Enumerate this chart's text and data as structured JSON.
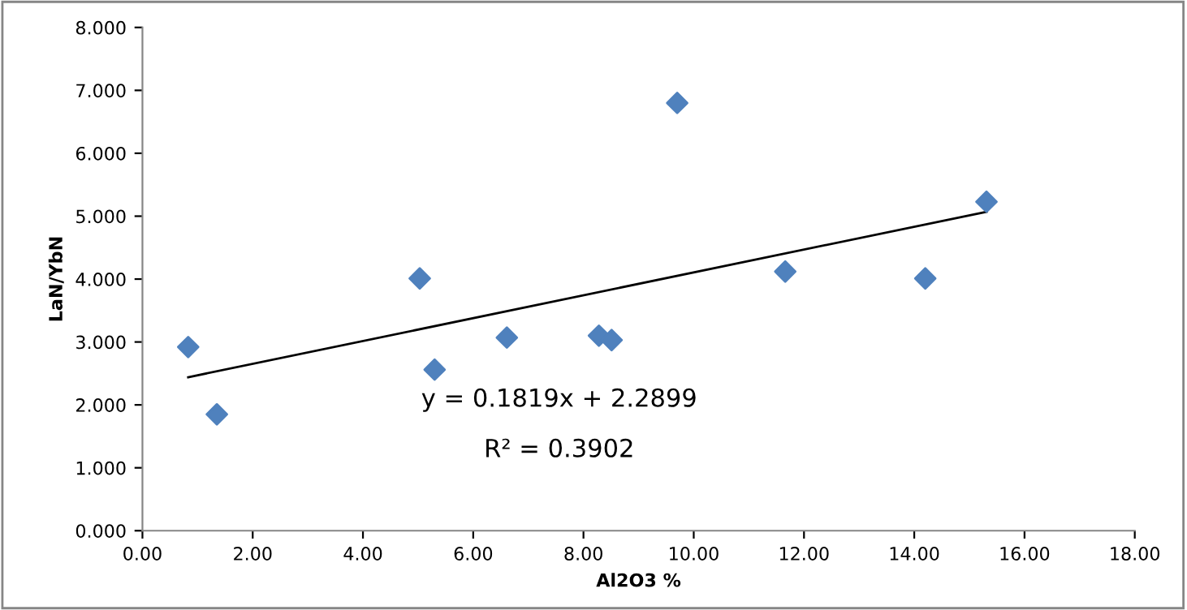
{
  "chart_data": {
    "type": "scatter",
    "xlabel": "Al2O3 %",
    "ylabel": "LaN/YbN",
    "x": [
      0.83,
      1.35,
      5.03,
      5.3,
      6.61,
      8.28,
      8.51,
      9.7,
      11.66,
      14.2,
      15.31
    ],
    "series": [
      {
        "color": "#4f81bd",
        "marker": "diamond",
        "values": [
          2.92,
          1.85,
          4.01,
          2.56,
          3.07,
          3.1,
          3.03,
          6.8,
          4.12,
          4.01,
          5.23
        ]
      },
      {
        "type": "line",
        "color": "#000000",
        "x": [
          0.83,
          15.31
        ],
        "values": [
          2.44,
          5.07
        ]
      }
    ],
    "xlim": [
      0,
      18
    ],
    "xticks": [
      {
        "value": 0,
        "label": "0.00"
      },
      {
        "value": 2,
        "label": "2.00"
      },
      {
        "value": 4,
        "label": "4.00"
      },
      {
        "value": 6,
        "label": "6.00"
      },
      {
        "value": 8,
        "label": "8.00"
      },
      {
        "value": 10,
        "label": "10.00"
      },
      {
        "value": 12,
        "label": "12.00"
      },
      {
        "value": 14,
        "label": "14.00"
      },
      {
        "value": 16,
        "label": "16.00"
      },
      {
        "value": 18,
        "label": "18.00"
      }
    ],
    "ylim": [
      0,
      8
    ],
    "yticks": [
      {
        "value": 0,
        "label": "0.000"
      },
      {
        "value": 1,
        "label": "1.000"
      },
      {
        "value": 2,
        "label": "2.000"
      },
      {
        "value": 3,
        "label": "3.000"
      },
      {
        "value": 4,
        "label": "4.000"
      },
      {
        "value": 5,
        "label": "5.000"
      },
      {
        "value": 6,
        "label": "6.000"
      },
      {
        "value": 7,
        "label": "7.000"
      },
      {
        "value": 8,
        "label": "8.000"
      }
    ],
    "grid": false,
    "legend": false,
    "annotations": [
      "y = 0.1819x + 2.2899",
      "R² = 0.3902"
    ]
  }
}
